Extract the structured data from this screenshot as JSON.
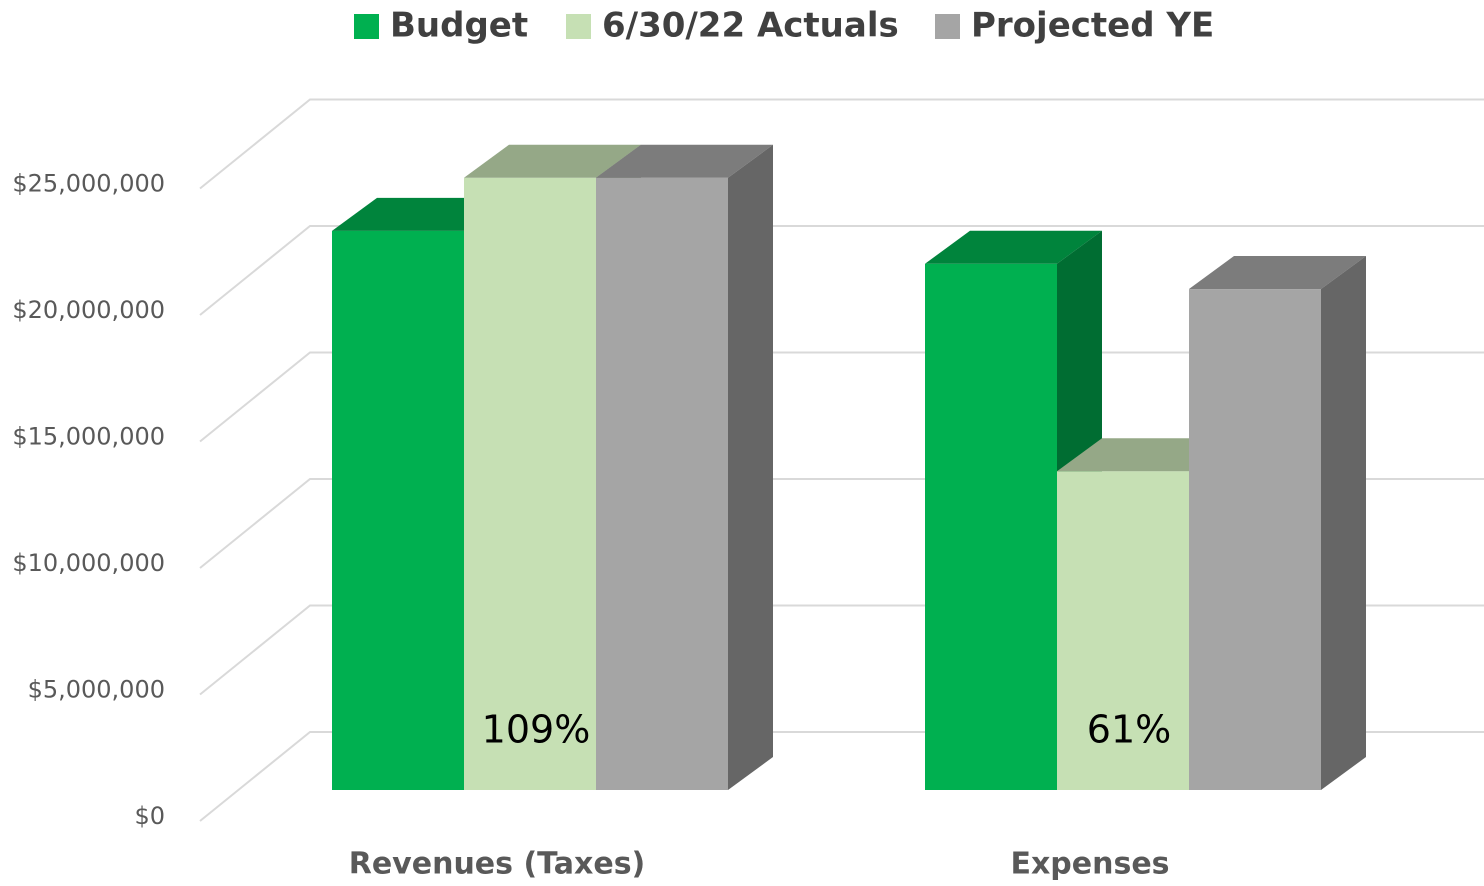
{
  "chart_data": {
    "type": "bar3d",
    "categories": [
      "Revenues (Taxes)",
      "Expenses"
    ],
    "series": [
      {
        "name": "Budget",
        "color": "#00b050",
        "values": [
          22100000,
          20800000
        ]
      },
      {
        "name": "6/30/22 Actuals",
        "color": "#c6e0b4",
        "values": [
          24200000,
          12600000
        ]
      },
      {
        "name": "Projected YE",
        "color": "#a5a5a5",
        "values": [
          24200000,
          19800000
        ]
      }
    ],
    "annotations": [
      "109%",
      "61%"
    ],
    "ylim": [
      0,
      27500000
    ],
    "yticks": [
      {
        "value": 0,
        "label": "$0"
      },
      {
        "value": 5000000,
        "label": "$5,000,000"
      },
      {
        "value": 10000000,
        "label": "$10,000,000"
      },
      {
        "value": 15000000,
        "label": "$15,000,000"
      },
      {
        "value": 20000000,
        "label": "$20,000,000"
      },
      {
        "value": 25000000,
        "label": "$25,000,000"
      }
    ],
    "grid": true,
    "legend": "top"
  }
}
